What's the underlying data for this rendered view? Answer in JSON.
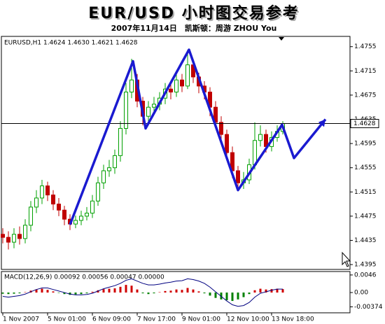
{
  "chart_data": [
    {
      "type": "candlestick",
      "title": "EUR/USD 小时图交易参考",
      "subtitle": "2007年11月14日　凯斯顿：周游 ZHOU You",
      "label": "EURUSD,H1  1.4624 1.4630 1.4621 1.4628",
      "x": [
        0,
        4,
        8,
        12,
        16,
        20,
        24,
        28,
        32,
        36,
        40,
        44,
        48,
        52,
        56,
        60,
        64,
        68,
        72,
        76,
        80,
        84,
        88,
        92,
        96,
        100,
        104,
        108,
        112,
        116,
        120,
        124,
        128,
        132,
        136,
        140,
        144,
        148,
        152,
        156,
        160,
        164,
        168,
        172,
        176,
        180,
        184,
        188,
        192,
        196,
        200
      ],
      "open": [
        1.4445,
        1.444,
        1.4432,
        1.4445,
        1.4438,
        1.446,
        1.449,
        1.4505,
        1.4525,
        1.451,
        1.4495,
        1.4485,
        1.447,
        1.4462,
        1.4468,
        1.4475,
        1.448,
        1.45,
        1.453,
        1.455,
        1.4555,
        1.4575,
        1.462,
        1.468,
        1.47,
        1.4665,
        1.464,
        1.4655,
        1.466,
        1.467,
        1.4685,
        1.468,
        1.47,
        1.469,
        1.4725,
        1.4705,
        1.469,
        1.468,
        1.4655,
        1.463,
        1.461,
        1.458,
        1.455,
        1.453,
        1.4535,
        1.456,
        1.46,
        1.461,
        1.459,
        1.4605,
        1.4615
      ],
      "high": [
        1.4455,
        1.445,
        1.4455,
        1.4458,
        1.447,
        1.45,
        1.4518,
        1.4535,
        1.4532,
        1.4518,
        1.4505,
        1.4492,
        1.4478,
        1.4476,
        1.4484,
        1.449,
        1.451,
        1.454,
        1.456,
        1.4568,
        1.4585,
        1.4632,
        1.4695,
        1.4735,
        1.471,
        1.4672,
        1.4665,
        1.4672,
        1.468,
        1.4695,
        1.4695,
        1.4712,
        1.471,
        1.475,
        1.4735,
        1.4712,
        1.4698,
        1.4688,
        1.4665,
        1.464,
        1.4618,
        1.459,
        1.4558,
        1.4548,
        1.457,
        1.463,
        1.4625,
        1.4618,
        1.4615,
        1.4625,
        1.4632
      ],
      "low": [
        1.443,
        1.442,
        1.4422,
        1.4428,
        1.443,
        1.445,
        1.448,
        1.4495,
        1.45,
        1.4485,
        1.4475,
        1.446,
        1.4452,
        1.4455,
        1.446,
        1.4468,
        1.4472,
        1.4492,
        1.452,
        1.454,
        1.4545,
        1.4565,
        1.461,
        1.467,
        1.4655,
        1.4625,
        1.4632,
        1.4645,
        1.465,
        1.466,
        1.4668,
        1.4672,
        1.468,
        1.4685,
        1.4695,
        1.4678,
        1.4668,
        1.464,
        1.462,
        1.4598,
        1.457,
        1.4538,
        1.4518,
        1.452,
        1.4528,
        1.4552,
        1.459,
        1.458,
        1.4582,
        1.4598,
        1.461
      ],
      "close": [
        1.444,
        1.4432,
        1.4445,
        1.4438,
        1.446,
        1.449,
        1.4505,
        1.4525,
        1.451,
        1.4495,
        1.4485,
        1.447,
        1.4462,
        1.4468,
        1.4475,
        1.448,
        1.45,
        1.453,
        1.455,
        1.4555,
        1.4575,
        1.462,
        1.468,
        1.47,
        1.4665,
        1.464,
        1.4655,
        1.466,
        1.467,
        1.4685,
        1.468,
        1.47,
        1.469,
        1.4725,
        1.4705,
        1.469,
        1.468,
        1.4655,
        1.463,
        1.461,
        1.458,
        1.455,
        1.453,
        1.4535,
        1.456,
        1.46,
        1.461,
        1.459,
        1.4605,
        1.4615,
        1.4628
      ],
      "up_color": "#00a000",
      "down_color": "#c00000",
      "current": 1.4628,
      "zigzag": {
        "x": [
          48,
          93,
          102,
          133,
          168,
          199.5,
          208,
          230.5
        ],
        "y": [
          1.4461,
          1.4731,
          1.462,
          1.475,
          1.4518,
          1.4626,
          1.4571,
          1.4635
        ],
        "color": "#1a1ad0"
      },
      "xlim": [
        -1,
        248
      ],
      "ylim": [
        1.4387,
        1.4772
      ],
      "yticks": [
        1.4755,
        1.4715,
        1.4675,
        1.4635,
        1.4595,
        1.4555,
        1.4515,
        1.4475,
        1.4435,
        1.4395
      ]
    },
    {
      "type": "macd",
      "label": "MACD(12,26,9) 0.00092 0.00056 0.00047 0.00000",
      "x": [
        0,
        4,
        8,
        12,
        16,
        20,
        24,
        28,
        32,
        36,
        40,
        44,
        48,
        52,
        56,
        60,
        64,
        68,
        72,
        76,
        80,
        84,
        88,
        92,
        96,
        100,
        104,
        108,
        112,
        116,
        120,
        124,
        128,
        132,
        136,
        140,
        144,
        148,
        152,
        156,
        160,
        164,
        168,
        172,
        176,
        180,
        184,
        188,
        192,
        196,
        200
      ],
      "values": [
        -0.0003,
        -0.0004,
        -0.0003,
        -0.0002,
        0.0001,
        0.0005,
        0.0008,
        0.001,
        0.0007,
        0.0003,
        -0.0001,
        -0.0004,
        -0.0006,
        -0.0005,
        -0.0004,
        -0.0002,
        0.0002,
        0.0006,
        0.0009,
        0.001,
        0.0011,
        0.0015,
        0.002,
        0.0018,
        0.0008,
        -0.0002,
        -0.0004,
        -0.0002,
        0.0001,
        0.0004,
        0.0005,
        0.0008,
        0.0007,
        0.0012,
        0.0008,
        0.0003,
        -0.0002,
        -0.0008,
        -0.0014,
        -0.0018,
        -0.002,
        -0.0022,
        -0.0018,
        -0.0012,
        -0.0004,
        0.0006,
        0.001,
        0.0008,
        0.0009,
        0.001,
        0.0009
      ],
      "pos_color": "#d00000",
      "neg_color": "#008000",
      "line": {
        "color": "#000080",
        "values": [
          -0.001,
          -0.0012,
          -0.001,
          -0.0008,
          -0.0004,
          0.0002,
          0.0008,
          0.0012,
          0.0012,
          0.0008,
          0.0004,
          0.0,
          -0.0004,
          -0.0006,
          -0.0006,
          -0.0005,
          -0.0002,
          0.0004,
          0.001,
          0.0014,
          0.0018,
          0.0024,
          0.0032,
          0.0036,
          0.003,
          0.0024,
          0.002,
          0.002,
          0.0022,
          0.0025,
          0.0027,
          0.003,
          0.0031,
          0.0036,
          0.0034,
          0.003,
          0.0024,
          0.0014,
          0.0002,
          -0.001,
          -0.0022,
          -0.0032,
          -0.0036,
          -0.0034,
          -0.0026,
          -0.0012,
          -0.0002,
          0.0002,
          0.0006,
          0.0009,
          0.0009
        ]
      },
      "xlim": [
        -1,
        248
      ],
      "ylim": [
        -0.0053,
        0.0055
      ],
      "yticks": [
        0.0046,
        {
          "value": 0,
          "label": "0.00"
        },
        -0.00374
      ],
      "xticks": [
        {
          "value": 0,
          "label": "1 Nov 2007"
        },
        {
          "value": 32,
          "label": "5 Nov 01:00"
        },
        {
          "value": 64,
          "label": "6 Nov 09:00"
        },
        {
          "value": 96,
          "label": "7 Nov 17:00"
        },
        {
          "value": 128,
          "label": "9 Nov 01:00"
        },
        {
          "value": 160,
          "label": "12 Nov 10:00"
        },
        {
          "value": 192,
          "label": "13 Nov 18:00"
        }
      ]
    }
  ]
}
